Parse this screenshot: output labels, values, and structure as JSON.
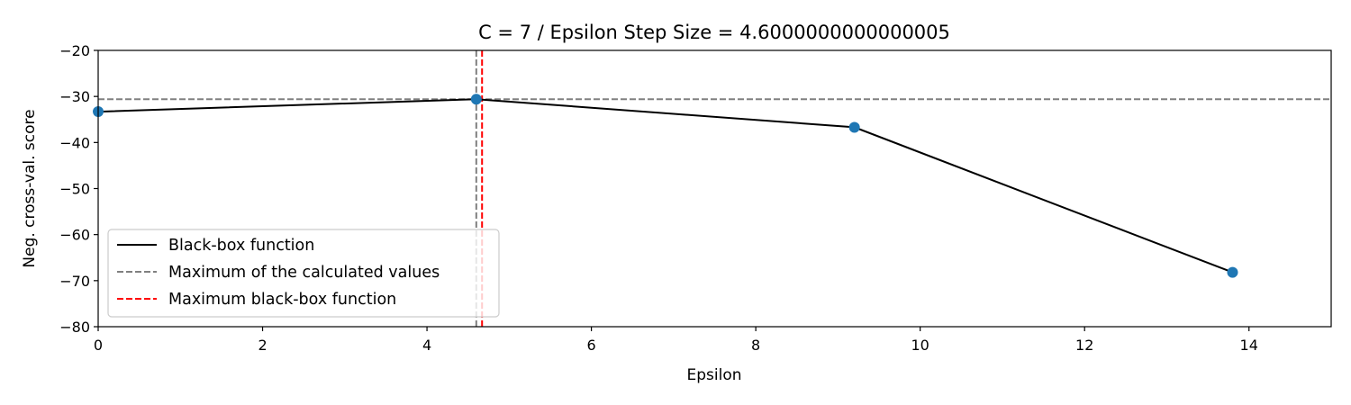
{
  "chart_data": {
    "type": "line",
    "title": "C = 7 / Epsilon Step Size = 4.6000000000000005",
    "xlabel": "Epsilon",
    "ylabel": "Neg. cross-val. score",
    "xlim": [
      0,
      15
    ],
    "ylim": [
      -80,
      -20
    ],
    "xticks": [
      0,
      2,
      4,
      6,
      8,
      10,
      12,
      14
    ],
    "yticks": [
      -80,
      -70,
      -60,
      -50,
      -40,
      -30,
      -20
    ],
    "series": [
      {
        "name": "Black-box function",
        "x": [
          0,
          4.6,
          9.2,
          13.8
        ],
        "y": [
          -33.3,
          -30.6,
          -36.7,
          -68.2
        ],
        "color": "#000000"
      }
    ],
    "points": {
      "x": [
        0,
        4.6,
        9.2,
        13.8
      ],
      "y": [
        -33.3,
        -30.6,
        -36.7,
        -68.2
      ],
      "color": "#1f77b4"
    },
    "reference_lines": {
      "max_calculated": {
        "label": "Maximum of the calculated values",
        "x": 4.6,
        "y": -30.6,
        "color": "#808080"
      },
      "max_blackbox": {
        "label": "Maximum black-box function",
        "x": 4.67,
        "color": "#ff0000"
      }
    },
    "legend": {
      "position": "lower-left",
      "entries": [
        {
          "label": "Black-box function",
          "color": "#000000",
          "style": "solid"
        },
        {
          "label": "Maximum of the calculated values",
          "color": "#808080",
          "style": "dashed"
        },
        {
          "label": "Maximum black-box function",
          "color": "#ff0000",
          "style": "dashed"
        }
      ]
    }
  }
}
